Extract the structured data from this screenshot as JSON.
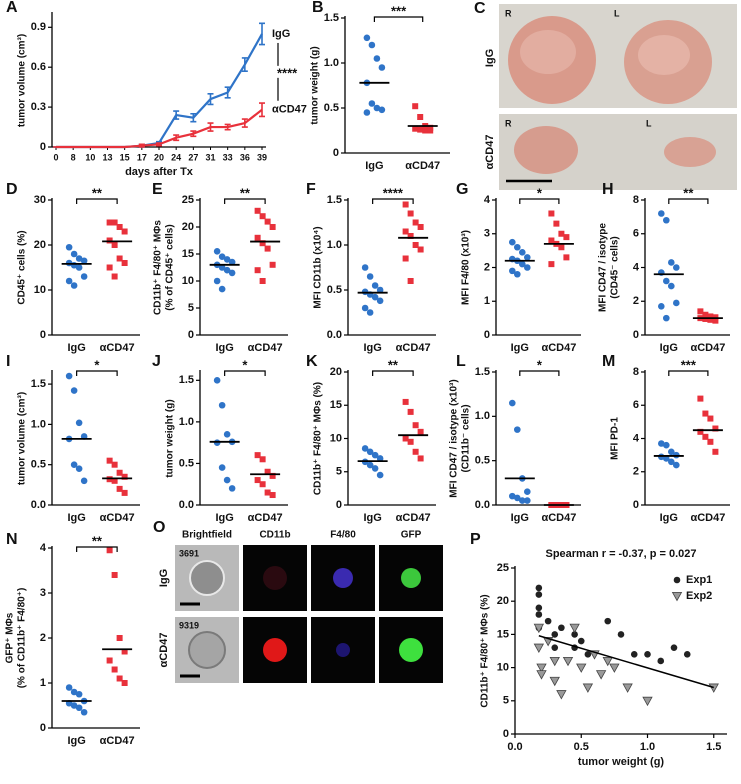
{
  "chart_data": [
    {
      "type": "line",
      "panel": "A",
      "ylabel": [
        "tumor volume (cm³)"
      ],
      "xlabel": "days after Tx",
      "categories": [
        "0",
        "8",
        "10",
        "13",
        "15",
        "17",
        "20",
        "24",
        "27",
        "31",
        "33",
        "36",
        "39"
      ],
      "series": [
        {
          "name": "IgG",
          "color": "#2f74c8",
          "values": [
            0,
            0,
            0,
            0,
            0,
            0.01,
            0.03,
            0.24,
            0.22,
            0.36,
            0.41,
            0.62,
            0.85
          ],
          "errors": [
            0,
            0,
            0,
            0,
            0,
            0.01,
            0.01,
            0.03,
            0.03,
            0.04,
            0.04,
            0.05,
            0.08
          ]
        },
        {
          "name": "αCD47",
          "color": "#e8313b",
          "values": [
            0,
            0,
            0,
            0,
            0,
            0.01,
            0.02,
            0.07,
            0.1,
            0.15,
            0.15,
            0.18,
            0.28
          ],
          "errors": [
            0,
            0,
            0,
            0,
            0,
            0.01,
            0.01,
            0.02,
            0.02,
            0.03,
            0.02,
            0.03,
            0.05
          ]
        }
      ],
      "significance": "****",
      "ylim": [
        0,
        1.0
      ],
      "yticks": [
        0,
        0.3,
        0.6,
        0.9
      ]
    },
    {
      "type": "dot",
      "panel": "B",
      "ylabel": [
        "tumor weight (g)"
      ],
      "categories": [
        "IgG",
        "αCD47"
      ],
      "groups": [
        {
          "color": "#2f74c8",
          "marker": "circle",
          "values": [
            1.28,
            1.2,
            1.05,
            0.95,
            0.78,
            0.55,
            0.5,
            0.48,
            0.45
          ],
          "median": 0.78
        },
        {
          "color": "#e8313b",
          "marker": "square",
          "values": [
            0.52,
            0.4,
            0.3,
            0.28,
            0.27,
            0.26,
            0.25,
            0.25
          ],
          "median": 0.3
        }
      ],
      "significance": "***",
      "ylim": [
        0,
        1.5
      ],
      "yticks": [
        0,
        0.5,
        {
          "value": 1,
          "label": "1.0"
        },
        1.5
      ]
    },
    {
      "type": "dot",
      "panel": "D",
      "ylabel": [
        "CD45⁺ cells (%)"
      ],
      "categories": [
        "IgG",
        "αCD47"
      ],
      "groups": [
        {
          "color": "#2f74c8",
          "marker": "circle",
          "values": [
            19.5,
            18,
            17,
            16.5,
            16,
            15.5,
            15,
            13,
            12,
            11
          ],
          "median": 15.8
        },
        {
          "color": "#e8313b",
          "marker": "square",
          "values": [
            25,
            25,
            24,
            23,
            21,
            20,
            17,
            16,
            15,
            13
          ],
          "median": 20.8
        }
      ],
      "significance": "**",
      "ylim": [
        0,
        30
      ],
      "yticks": [
        0,
        10,
        20,
        30
      ]
    },
    {
      "type": "dot",
      "panel": "E",
      "ylabel": [
        "CD11b⁺ F4/80⁺ MΦs",
        "(% of CD45⁺ cells)"
      ],
      "categories": [
        "IgG",
        "αCD47"
      ],
      "groups": [
        {
          "color": "#2f74c8",
          "marker": "circle",
          "values": [
            15.5,
            14.5,
            14,
            13.5,
            13,
            12.5,
            12,
            11.5,
            10,
            8.5
          ],
          "median": 13
        },
        {
          "color": "#e8313b",
          "marker": "square",
          "values": [
            23,
            22,
            21,
            20,
            18,
            17,
            16,
            13,
            12,
            10
          ],
          "median": 17.3
        }
      ],
      "significance": "**",
      "ylim": [
        0,
        25
      ],
      "yticks": [
        0,
        5,
        10,
        15,
        20,
        25
      ]
    },
    {
      "type": "dot",
      "panel": "F",
      "ylabel": [
        "MFI CD11b (x10⁴)"
      ],
      "categories": [
        "IgG",
        "αCD47"
      ],
      "groups": [
        {
          "color": "#2f74c8",
          "marker": "circle",
          "values": [
            0.75,
            0.65,
            0.55,
            0.5,
            0.48,
            0.45,
            0.42,
            0.38,
            0.3,
            0.25
          ],
          "median": 0.47
        },
        {
          "color": "#e8313b",
          "marker": "square",
          "values": [
            1.45,
            1.35,
            1.25,
            1.2,
            1.15,
            1.1,
            1.0,
            0.95,
            0.85,
            0.6
          ],
          "median": 1.08
        }
      ],
      "significance": "****",
      "ylim": [
        0,
        1.5
      ],
      "yticks": [
        {
          "value": 0,
          "label": "0.0"
        },
        0.5,
        {
          "value": 1,
          "label": "1.0"
        },
        1.5
      ]
    },
    {
      "type": "dot",
      "panel": "G",
      "ylabel": [
        "MFI F4/80 (x10³)"
      ],
      "categories": [
        "IgG",
        "αCD47"
      ],
      "groups": [
        {
          "color": "#2f74c8",
          "marker": "circle",
          "values": [
            2.75,
            2.6,
            2.45,
            2.3,
            2.25,
            2.2,
            2.1,
            2.0,
            1.9,
            1.8
          ],
          "median": 2.2
        },
        {
          "color": "#e8313b",
          "marker": "square",
          "values": [
            3.6,
            3.3,
            3.0,
            2.9,
            2.8,
            2.7,
            2.6,
            2.3,
            2.1
          ],
          "median": 2.7
        }
      ],
      "significance": "*",
      "ylim": [
        0,
        4
      ],
      "yticks": [
        0,
        1,
        2,
        3,
        4
      ]
    },
    {
      "type": "dot",
      "panel": "H",
      "ylabel": [
        "MFI CD47 / isotype",
        "(CD45⁻ cells)"
      ],
      "categories": [
        "IgG",
        "αCD47"
      ],
      "groups": [
        {
          "color": "#2f74c8",
          "marker": "circle",
          "values": [
            7.2,
            6.8,
            4.3,
            4.0,
            3.7,
            3.2,
            2.9,
            1.9,
            1.7,
            1.0
          ],
          "median": 3.6
        },
        {
          "color": "#e8313b",
          "marker": "square",
          "values": [
            1.4,
            1.2,
            1.1,
            1.05,
            1.0,
            0.95,
            0.9,
            0.85
          ],
          "median": 1.0
        }
      ],
      "significance": "**",
      "ylim": [
        0,
        8
      ],
      "yticks": [
        0,
        2,
        4,
        6,
        8
      ]
    },
    {
      "type": "dot",
      "panel": "I",
      "ylabel": [
        "tumor volume (cm³)"
      ],
      "categories": [
        "IgG",
        "αCD47"
      ],
      "groups": [
        {
          "color": "#2f74c8",
          "marker": "circle",
          "values": [
            1.6,
            1.42,
            1.02,
            0.85,
            0.82,
            0.5,
            0.45,
            0.3
          ],
          "median": 0.82
        },
        {
          "color": "#e8313b",
          "marker": "square",
          "values": [
            0.55,
            0.5,
            0.4,
            0.35,
            0.32,
            0.3,
            0.2,
            0.15
          ],
          "median": 0.33
        }
      ],
      "significance": "*",
      "ylim": [
        0,
        1.65
      ],
      "yticks": [
        {
          "value": 0,
          "label": "0.0"
        },
        0.5,
        {
          "value": 1,
          "label": "1.0"
        },
        1.5
      ]
    },
    {
      "type": "dot",
      "panel": "J",
      "ylabel": [
        "tumor weight (g)"
      ],
      "categories": [
        "IgG",
        "αCD47"
      ],
      "groups": [
        {
          "color": "#2f74c8",
          "marker": "circle",
          "values": [
            1.5,
            1.2,
            0.85,
            0.76,
            0.75,
            0.45,
            0.3,
            0.2
          ],
          "median": 0.76
        },
        {
          "color": "#e8313b",
          "marker": "square",
          "values": [
            0.6,
            0.55,
            0.4,
            0.35,
            0.3,
            0.25,
            0.15,
            0.12
          ],
          "median": 0.37
        }
      ],
      "significance": "*",
      "ylim": [
        0,
        1.6
      ],
      "yticks": [
        {
          "value": 0,
          "label": "0.0"
        },
        0.5,
        {
          "value": 1,
          "label": "1.0"
        },
        1.5
      ]
    },
    {
      "type": "dot",
      "panel": "K",
      "ylabel": [
        "CD11b⁺ F4/80⁺ MΦs (%)"
      ],
      "categories": [
        "IgG",
        "αCD47"
      ],
      "groups": [
        {
          "color": "#2f74c8",
          "marker": "circle",
          "values": [
            8.5,
            8,
            7.5,
            7,
            6.5,
            6,
            5.5,
            4.5
          ],
          "median": 6.6
        },
        {
          "color": "#e8313b",
          "marker": "square",
          "values": [
            15.5,
            14,
            12,
            11,
            10,
            9.5,
            8,
            7
          ],
          "median": 10.5
        }
      ],
      "significance": "**",
      "ylim": [
        0,
        20
      ],
      "yticks": [
        0,
        5,
        10,
        15,
        20
      ]
    },
    {
      "type": "dot",
      "panel": "L",
      "ylabel": [
        "MFI CD47 / isotype (x10³)",
        "(CD11b⁻ cells)"
      ],
      "categories": [
        "IgG",
        "αCD47"
      ],
      "groups": [
        {
          "color": "#2f74c8",
          "marker": "circle",
          "values": [
            1.15,
            0.85,
            0.3,
            0.15,
            0.1,
            0.08,
            0.05,
            0.05
          ],
          "median": 0.3
        },
        {
          "color": "#e8313b",
          "marker": "square",
          "values": [
            0,
            0,
            0,
            0,
            0,
            0,
            0,
            0
          ],
          "median": 0
        }
      ],
      "significance": "*",
      "ylim": [
        0,
        1.5
      ],
      "yticks": [
        {
          "value": 0,
          "label": "0.0"
        },
        0.5,
        {
          "value": 1,
          "label": "1.0"
        },
        1.5
      ]
    },
    {
      "type": "dot",
      "panel": "M",
      "ylabel": [
        "MFI PD-1"
      ],
      "categories": [
        "IgG",
        "αCD47"
      ],
      "groups": [
        {
          "color": "#2f74c8",
          "marker": "circle",
          "values": [
            3.7,
            3.6,
            3.2,
            3.0,
            2.9,
            2.8,
            2.6,
            2.4
          ],
          "median": 2.95
        },
        {
          "color": "#e8313b",
          "marker": "square",
          "values": [
            6.4,
            5.5,
            5.2,
            4.6,
            4.4,
            4.1,
            3.8,
            3.2
          ],
          "median": 4.5
        }
      ],
      "significance": "***",
      "ylim": [
        0,
        8
      ],
      "yticks": [
        0,
        2,
        4,
        6,
        8
      ]
    },
    {
      "type": "dot",
      "panel": "N",
      "ylabel": [
        "GFP⁺ MΦs",
        "(% of CD11b⁺ F4/80⁺)"
      ],
      "categories": [
        "IgG",
        "αCD47"
      ],
      "groups": [
        {
          "color": "#2f74c8",
          "marker": "circle",
          "values": [
            0.9,
            0.8,
            0.75,
            0.6,
            0.55,
            0.5,
            0.45,
            0.35
          ],
          "median": 0.6
        },
        {
          "color": "#e8313b",
          "marker": "square",
          "values": [
            3.95,
            3.4,
            2.0,
            1.7,
            1.5,
            1.3,
            1.1,
            1.0
          ],
          "median": 1.75
        }
      ],
      "significance": "**",
      "ylim": [
        0,
        4
      ],
      "yticks": [
        0,
        1,
        2,
        3,
        4
      ]
    },
    {
      "type": "scatter",
      "panel": "P",
      "title": "Spearman r = -0.37, p = 0.027",
      "xlabel": "tumor weight (g)",
      "ylabel": [
        "CD11b⁺ F4/80⁺ MΦs (%)"
      ],
      "series": [
        {
          "name": "Exp1",
          "color": "#222222",
          "marker": "circle",
          "x": [
            0.18,
            0.18,
            0.18,
            0.18,
            0.18,
            0.25,
            0.3,
            0.3,
            0.35,
            0.45,
            0.45,
            0.5,
            0.55,
            0.7,
            0.8,
            0.9,
            1.0,
            1.1,
            1.2,
            1.3
          ],
          "y": [
            22,
            21,
            19,
            18,
            16,
            17,
            15,
            13,
            16,
            15,
            13,
            14,
            12,
            17,
            15,
            12,
            12,
            11,
            13,
            12
          ]
        },
        {
          "name": "Exp2",
          "color": "#999999",
          "marker": "triangle-down",
          "x": [
            0.18,
            0.18,
            0.2,
            0.2,
            0.25,
            0.3,
            0.3,
            0.35,
            0.4,
            0.45,
            0.5,
            0.55,
            0.6,
            0.65,
            0.7,
            0.75,
            0.85,
            1.0,
            1.5
          ],
          "y": [
            16,
            13,
            10,
            9,
            14,
            11,
            8,
            6,
            11,
            16,
            10,
            7,
            12,
            9,
            11,
            10,
            7,
            5,
            7
          ]
        }
      ],
      "trend": {
        "x": [
          0.18,
          1.5
        ],
        "y": [
          14.8,
          7.0
        ]
      },
      "legend": "upper right",
      "xlim": [
        0,
        1.6
      ],
      "xticks": [
        {
          "value": 0,
          "label": "0.0"
        },
        0.5,
        {
          "value": 1,
          "label": "1.0"
        },
        1.5
      ],
      "ylim": [
        0,
        25
      ],
      "yticks": [
        0,
        5,
        10,
        15,
        20,
        25
      ]
    }
  ],
  "images": [
    {
      "panel": "C",
      "rows": [
        "IgG",
        "αCD47"
      ],
      "markers": [
        "R",
        "L",
        "R",
        "L"
      ]
    },
    {
      "panel": "O",
      "columns": [
        "Brightfield",
        "CD11b",
        "F4/80",
        "GFP"
      ],
      "rows": [
        "IgG",
        "αCD47"
      ],
      "ids": [
        "3691",
        "9319"
      ]
    }
  ]
}
